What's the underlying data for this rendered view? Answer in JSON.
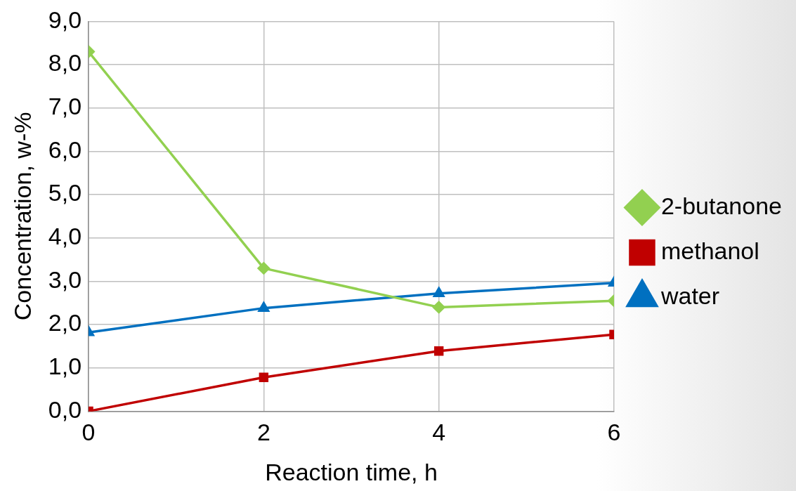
{
  "chart_data": {
    "type": "line",
    "xlabel": "Reaction time, h",
    "ylabel": "Concentration, w-%",
    "x": [
      0,
      2,
      4,
      6
    ],
    "series": [
      {
        "name": "2-butanone",
        "color": "#92d050",
        "values": [
          8.3,
          3.3,
          2.4,
          2.55
        ],
        "marker": "diamond"
      },
      {
        "name": "methanol",
        "color": "#c00000",
        "values": [
          0,
          0.78,
          1.39,
          1.77
        ],
        "marker": "square"
      },
      {
        "name": "water",
        "color": "#0070c0",
        "values": [
          1.82,
          2.38,
          2.72,
          2.96
        ],
        "marker": "triangle"
      }
    ],
    "xlim": [
      0,
      6
    ],
    "xticks": [
      0,
      2,
      4,
      6
    ],
    "ylim": [
      0,
      9
    ],
    "yticks": [
      {
        "value": 0,
        "label": "0,0"
      },
      {
        "value": 1,
        "label": "1,0"
      },
      {
        "value": 2,
        "label": "2,0"
      },
      {
        "value": 3,
        "label": "3,0"
      },
      {
        "value": 4,
        "label": "4,0"
      },
      {
        "value": 5,
        "label": "5,0"
      },
      {
        "value": 6,
        "label": "6,0"
      },
      {
        "value": 7,
        "label": "7,0"
      },
      {
        "value": 8,
        "label": "8,0"
      },
      {
        "value": 9,
        "label": "9,0"
      }
    ],
    "grid": true,
    "legend": "right"
  }
}
